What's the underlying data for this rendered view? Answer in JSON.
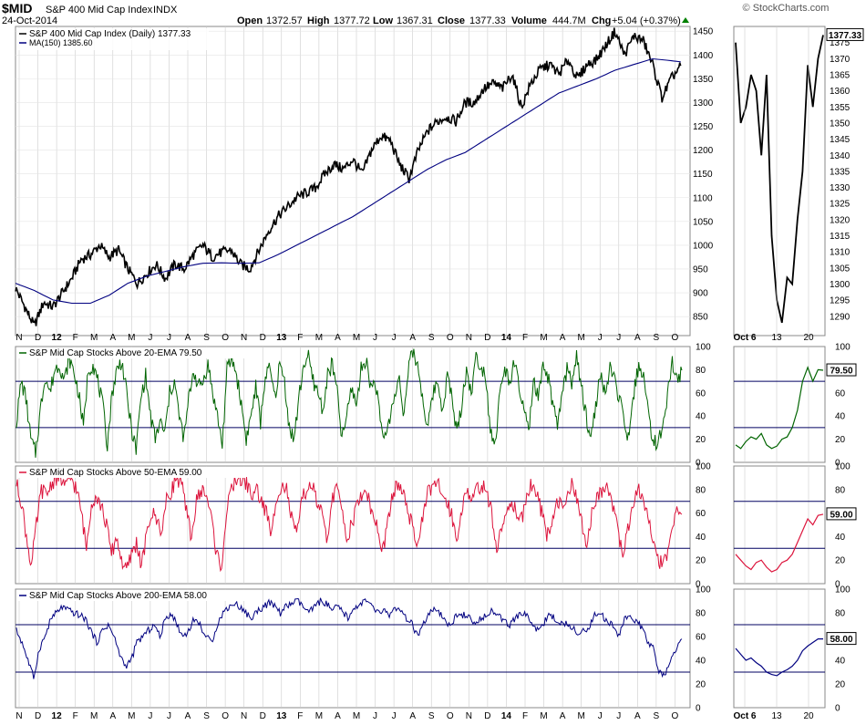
{
  "header": {
    "symbol": "$MID",
    "name": "S&P 400 Mid Cap Index",
    "exchange": "INDX",
    "date": "24-Oct-2014",
    "watermark": "© StockCharts.com",
    "open_label": "Open",
    "open": "1372.57",
    "high_label": "High",
    "high": "1377.72",
    "low_label": "Low",
    "low": "1367.31",
    "close_label": "Close",
    "close": "1377.33",
    "volume_label": "Volume",
    "volume": "444.7M",
    "chg_label": "Chg",
    "chg": "+5.04 (+0.37%)"
  },
  "colors": {
    "price": "#000000",
    "ma": "#000080",
    "ema20": "#006400",
    "ema50": "#dc143c",
    "ema200": "#000080",
    "refline": "#000060",
    "grid": "#cccccc"
  },
  "chart_data": [
    {
      "type": "line",
      "panel": "price",
      "xlabel": "",
      "ylabel": "",
      "ylim": [
        810,
        1460
      ],
      "yticks": [
        850,
        900,
        950,
        1000,
        1050,
        1100,
        1150,
        1200,
        1250,
        1300,
        1350,
        1400,
        1450
      ],
      "x_month_labels": [
        "N",
        "D",
        "12",
        "F",
        "M",
        "A",
        "M",
        "J",
        "J",
        "A",
        "S",
        "O",
        "N",
        "D",
        "13",
        "F",
        "M",
        "A",
        "M",
        "J",
        "J",
        "A",
        "S",
        "O",
        "N",
        "D",
        "14",
        "F",
        "M",
        "A",
        "M",
        "J",
        "J",
        "A",
        "S",
        "O"
      ],
      "series": [
        {
          "name": "S&P 400 Mid Cap Index (Daily) 1377.33",
          "color": "#000000",
          "anchors": [
            [
              0,
              910
            ],
            [
              0.5,
              870
            ],
            [
              1,
              830
            ],
            [
              1.5,
              880
            ],
            [
              2,
              870
            ],
            [
              2.5,
              900
            ],
            [
              3,
              930
            ],
            [
              3.5,
              970
            ],
            [
              4,
              980
            ],
            [
              4.5,
              1000
            ],
            [
              5,
              975
            ],
            [
              5.5,
              990
            ],
            [
              6,
              950
            ],
            [
              6.5,
              920
            ],
            [
              7,
              940
            ],
            [
              7.5,
              960
            ],
            [
              8,
              930
            ],
            [
              8.5,
              960
            ],
            [
              9,
              950
            ],
            [
              9.5,
              980
            ],
            [
              10,
              1000
            ],
            [
              10.5,
              975
            ],
            [
              11,
              985
            ],
            [
              11.5,
              990
            ],
            [
              12,
              960
            ],
            [
              12.5,
              950
            ],
            [
              13,
              990
            ],
            [
              13.5,
              1030
            ],
            [
              14,
              1060
            ],
            [
              14.5,
              1080
            ],
            [
              15,
              1100
            ],
            [
              15.5,
              1110
            ],
            [
              16,
              1120
            ],
            [
              16.5,
              1150
            ],
            [
              17,
              1170
            ],
            [
              17.5,
              1160
            ],
            [
              18,
              1180
            ],
            [
              18.5,
              1150
            ],
            [
              19,
              1200
            ],
            [
              19.5,
              1230
            ],
            [
              20,
              1220
            ],
            [
              20.5,
              1170
            ],
            [
              21,
              1140
            ],
            [
              21.5,
              1200
            ],
            [
              22,
              1240
            ],
            [
              22.5,
              1260
            ],
            [
              23,
              1270
            ],
            [
              23.5,
              1260
            ],
            [
              24,
              1300
            ],
            [
              24.5,
              1300
            ],
            [
              25,
              1330
            ],
            [
              25.5,
              1340
            ],
            [
              26,
              1330
            ],
            [
              26.5,
              1360
            ],
            [
              27,
              1290
            ],
            [
              27.5,
              1340
            ],
            [
              28,
              1370
            ],
            [
              28.5,
              1380
            ],
            [
              29,
              1360
            ],
            [
              29.5,
              1390
            ],
            [
              30,
              1350
            ],
            [
              30.5,
              1380
            ],
            [
              31,
              1390
            ],
            [
              31.5,
              1420
            ],
            [
              32,
              1450
            ],
            [
              32.5,
              1400
            ],
            [
              33,
              1440
            ],
            [
              33.5,
              1430
            ],
            [
              34,
              1380
            ],
            [
              34.5,
              1310
            ],
            [
              35,
              1350
            ],
            [
              35.5,
              1377.33
            ]
          ]
        },
        {
          "name": "MA(150) 1385.60",
          "color": "#000080",
          "anchors": [
            [
              0,
              920
            ],
            [
              1,
              905
            ],
            [
              2,
              885
            ],
            [
              3,
              878
            ],
            [
              4,
              878
            ],
            [
              5,
              895
            ],
            [
              6,
              920
            ],
            [
              7,
              935
            ],
            [
              8,
              945
            ],
            [
              9,
              955
            ],
            [
              10,
              962
            ],
            [
              11,
              963
            ],
            [
              12,
              962
            ],
            [
              13,
              963
            ],
            [
              14,
              980
            ],
            [
              15,
              1000
            ],
            [
              16,
              1020
            ],
            [
              17,
              1040
            ],
            [
              18,
              1060
            ],
            [
              19,
              1085
            ],
            [
              20,
              1110
            ],
            [
              21,
              1135
            ],
            [
              22,
              1160
            ],
            [
              23,
              1180
            ],
            [
              24,
              1195
            ],
            [
              25,
              1220
            ],
            [
              26,
              1245
            ],
            [
              27,
              1270
            ],
            [
              28,
              1295
            ],
            [
              29,
              1320
            ],
            [
              30,
              1335
            ],
            [
              31,
              1350
            ],
            [
              32,
              1368
            ],
            [
              33,
              1380
            ],
            [
              34,
              1392
            ],
            [
              35,
              1388
            ],
            [
              35.5,
              1385.6
            ]
          ]
        }
      ]
    },
    {
      "type": "line",
      "panel": "price-zoom",
      "ylim": [
        1284,
        1380
      ],
      "yticks": [
        1290,
        1295,
        1300,
        1305,
        1310,
        1315,
        1320,
        1325,
        1330,
        1335,
        1340,
        1345,
        1350,
        1355,
        1360,
        1365,
        1370,
        1375
      ],
      "x_labels": [
        "Oct 6",
        "13",
        "20"
      ],
      "last_label": "1377.33",
      "series": [
        {
          "color": "#000000",
          "values": [
            1375,
            1350,
            1355,
            1365,
            1360,
            1340,
            1365,
            1315,
            1295,
            1288,
            1302,
            1300,
            1320,
            1335,
            1368,
            1355,
            1370,
            1377.33
          ]
        }
      ]
    },
    {
      "type": "line",
      "panel": "ema20",
      "title": "S&P Mid Cap Stocks Above 20-EMA 79.50",
      "ylim": [
        0,
        100
      ],
      "yticks": [
        0,
        20,
        40,
        60,
        80,
        100
      ],
      "reference_lines": [
        70,
        30
      ],
      "last_label": "79.50",
      "series": [
        {
          "color": "#006400",
          "values": [
            35,
            70,
            55,
            20,
            8,
            45,
            75,
            60,
            80,
            85,
            70,
            90,
            78,
            60,
            30,
            80,
            85,
            70,
            50,
            15,
            60,
            80,
            88,
            60,
            30,
            10,
            55,
            75,
            40,
            20,
            35,
            25,
            60,
            70,
            40,
            20,
            55,
            80,
            65,
            70,
            85,
            60,
            40,
            15,
            80,
            90,
            75,
            50,
            20,
            40,
            65,
            35,
            75,
            80,
            55,
            85,
            70,
            30,
            20,
            55,
            85,
            90,
            70,
            60,
            45,
            75,
            85,
            60,
            20,
            40,
            65,
            50,
            80,
            90,
            65,
            70,
            35,
            20,
            40,
            55,
            75,
            40,
            85,
            95,
            80,
            50,
            30,
            60,
            70,
            45,
            75,
            55,
            25,
            50,
            80,
            60,
            90,
            85,
            75,
            30,
            15,
            60,
            80,
            70,
            85,
            65,
            45,
            25,
            70,
            55,
            80,
            75,
            50,
            30,
            60,
            80,
            70,
            90,
            65,
            40,
            20,
            50,
            75,
            60,
            80,
            70,
            55,
            30,
            20,
            60,
            85,
            75,
            40,
            20,
            15,
            30,
            60,
            85,
            70,
            79.5
          ]
        },
        {
          "color": "#006400",
          "zoom": true,
          "values": [
            15,
            12,
            18,
            22,
            20,
            25,
            15,
            12,
            14,
            20,
            22,
            30,
            45,
            70,
            82,
            70,
            80,
            79.5
          ]
        }
      ]
    },
    {
      "type": "line",
      "panel": "ema50",
      "title": "S&P Mid Cap Stocks Above 50-EMA 59.00",
      "ylim": [
        0,
        100
      ],
      "yticks": [
        0,
        20,
        40,
        60,
        80,
        100
      ],
      "reference_lines": [
        70,
        30
      ],
      "last_label": "59.00",
      "series": [
        {
          "color": "#dc143c",
          "values": [
            85,
            70,
            40,
            15,
            50,
            80,
            75,
            85,
            90,
            88,
            82,
            90,
            80,
            60,
            30,
            70,
            75,
            65,
            50,
            25,
            40,
            20,
            10,
            25,
            35,
            15,
            40,
            60,
            55,
            45,
            70,
            80,
            90,
            85,
            60,
            40,
            70,
            80,
            75,
            55,
            25,
            15,
            60,
            80,
            90,
            88,
            85,
            75,
            80,
            70,
            60,
            40,
            75,
            85,
            80,
            55,
            40,
            70,
            80,
            85,
            70,
            60,
            35,
            70,
            80,
            65,
            40,
            50,
            65,
            75,
            80,
            60,
            50,
            25,
            45,
            70,
            85,
            80,
            65,
            50,
            30,
            55,
            75,
            80,
            85,
            78,
            70,
            60,
            35,
            65,
            80,
            70,
            80,
            85,
            75,
            60,
            30,
            45,
            65,
            70,
            60,
            55,
            75,
            85,
            80,
            60,
            40,
            55,
            70,
            65,
            75,
            85,
            70,
            50,
            30,
            60,
            75,
            80,
            85,
            70,
            55,
            25,
            40,
            65,
            80,
            75,
            60,
            40,
            25,
            15,
            20,
            45,
            60,
            59
          ]
        },
        {
          "color": "#dc143c",
          "zoom": true,
          "values": [
            25,
            20,
            15,
            12,
            18,
            20,
            14,
            10,
            12,
            18,
            20,
            25,
            35,
            45,
            55,
            50,
            58,
            59
          ]
        }
      ]
    },
    {
      "type": "line",
      "panel": "ema200",
      "title": "S&P Mid Cap Stocks Above 200-EMA 58.00",
      "ylim": [
        0,
        100
      ],
      "yticks": [
        0,
        20,
        40,
        60,
        80,
        100
      ],
      "reference_lines": [
        70,
        30
      ],
      "last_label": "58.00",
      "series": [
        {
          "color": "#000080",
          "values": [
            65,
            55,
            40,
            25,
            50,
            60,
            75,
            80,
            85,
            82,
            80,
            78,
            75,
            65,
            55,
            65,
            70,
            60,
            45,
            35,
            40,
            55,
            60,
            65,
            70,
            60,
            75,
            80,
            70,
            60,
            65,
            75,
            70,
            60,
            55,
            70,
            80,
            85,
            88,
            85,
            80,
            75,
            82,
            85,
            88,
            86,
            80,
            85,
            88,
            90,
            85,
            80,
            85,
            90,
            88,
            82,
            85,
            80,
            75,
            85,
            88,
            90,
            85,
            80,
            82,
            78,
            85,
            80,
            75,
            70,
            60,
            70,
            80,
            82,
            78,
            70,
            72,
            80,
            78,
            75,
            70,
            75,
            80,
            82,
            78,
            72,
            70,
            75,
            80,
            78,
            70,
            65,
            72,
            78,
            75,
            70,
            72,
            68,
            60,
            65,
            70,
            80,
            78,
            72,
            70,
            60,
            75,
            78,
            72,
            68,
            55,
            50,
            30,
            26,
            40,
            50,
            58
          ]
        },
        {
          "color": "#000080",
          "zoom": true,
          "values": [
            50,
            45,
            40,
            42,
            38,
            35,
            30,
            28,
            27,
            30,
            32,
            35,
            40,
            48,
            52,
            55,
            58,
            58
          ]
        }
      ]
    }
  ]
}
